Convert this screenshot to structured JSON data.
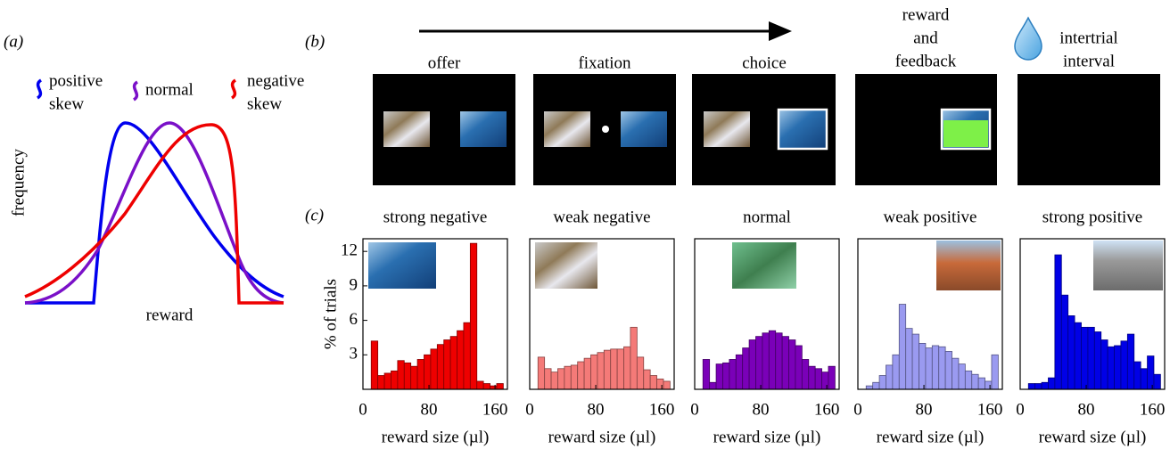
{
  "panel_a": {
    "label": "(a)",
    "curves": [
      {
        "name_lines": [
          "positive",
          "skew"
        ],
        "color": "#0000ee"
      },
      {
        "name_lines": [
          "normal"
        ],
        "color": "#7a10c8"
      },
      {
        "name_lines": [
          "negative",
          "skew"
        ],
        "color": "#ee0000"
      }
    ],
    "ylabel": "frequency",
    "xlabel": "reward"
  },
  "panel_b": {
    "label": "(b)",
    "stages": [
      {
        "label_lines": [
          "offer"
        ]
      },
      {
        "label_lines": [
          "fixation"
        ]
      },
      {
        "label_lines": [
          "choice"
        ]
      },
      {
        "label_lines": [
          "reward",
          "and",
          "feedback"
        ]
      },
      {
        "label_lines": [
          "intertrial",
          "interval"
        ]
      }
    ]
  },
  "panel_c": {
    "label": "(c)"
  },
  "chart_data": [
    {
      "type": "histogram",
      "title": "strong negative",
      "color": "#ee0000",
      "bins": [
        10,
        18,
        26,
        34,
        42,
        50,
        58,
        66,
        74,
        82,
        90,
        98,
        106,
        114,
        122,
        130,
        138,
        146,
        154,
        162,
        170
      ],
      "values": [
        4.2,
        1.2,
        1.4,
        1.6,
        2.5,
        2.3,
        2.0,
        2.6,
        3.0,
        3.5,
        3.9,
        4.3,
        4.6,
        5.1,
        5.8,
        12.7,
        0.7,
        0.5,
        0.3,
        0.5
      ],
      "xlim": [
        0,
        175
      ],
      "xticks": [
        0,
        80,
        160
      ],
      "ylim": [
        0,
        13.1
      ],
      "yticks": [
        3,
        6,
        9,
        12
      ],
      "xlabel": "reward size (µl)",
      "ylabel": "% of trials"
    },
    {
      "type": "histogram",
      "title": "weak negative",
      "color": "#f47a78",
      "bins": [
        10,
        18,
        26,
        34,
        42,
        50,
        58,
        66,
        74,
        82,
        90,
        98,
        106,
        114,
        122,
        130,
        138,
        146,
        154,
        162,
        170
      ],
      "values": [
        2.8,
        1.8,
        1.5,
        1.8,
        2.0,
        2.1,
        2.4,
        2.7,
        3.0,
        3.2,
        3.4,
        3.5,
        3.5,
        3.7,
        5.4,
        2.8,
        1.7,
        1.2,
        0.9,
        0.7
      ],
      "xlim": [
        0,
        175
      ],
      "xticks": [
        0,
        80,
        160
      ],
      "ylim": [
        0,
        13.1
      ],
      "xlabel": "reward size (µl)"
    },
    {
      "type": "histogram",
      "title": "normal",
      "color": "#7a00b8",
      "bins": [
        10,
        18,
        26,
        34,
        42,
        50,
        58,
        66,
        74,
        82,
        90,
        98,
        106,
        114,
        122,
        130,
        138,
        146,
        154,
        162,
        170
      ],
      "values": [
        2.6,
        0.6,
        2.2,
        2.3,
        2.6,
        3.0,
        3.6,
        4.3,
        4.6,
        4.9,
        5.1,
        4.9,
        4.6,
        4.3,
        3.8,
        2.6,
        2.0,
        1.8,
        1.5,
        2.0
      ],
      "xlim": [
        0,
        175
      ],
      "xticks": [
        0,
        80,
        160
      ],
      "ylim": [
        0,
        13.1
      ],
      "xlabel": "reward size (µl)"
    },
    {
      "type": "histogram",
      "title": "weak positive",
      "color": "#9a9af0",
      "bins": [
        10,
        18,
        26,
        34,
        42,
        50,
        58,
        66,
        74,
        82,
        90,
        98,
        106,
        114,
        122,
        130,
        138,
        146,
        154,
        162,
        170
      ],
      "values": [
        0.3,
        0.6,
        1.2,
        2.1,
        3.0,
        7.4,
        5.3,
        4.8,
        4.0,
        3.6,
        3.8,
        3.7,
        3.3,
        2.7,
        2.2,
        1.6,
        1.3,
        1.0,
        0.7,
        3.0
      ],
      "xlim": [
        0,
        175
      ],
      "xticks": [
        0,
        80,
        160
      ],
      "ylim": [
        0,
        13.1
      ],
      "xlabel": "reward size (µl)"
    },
    {
      "type": "histogram",
      "title": "strong positive",
      "color": "#0000e6",
      "bins": [
        10,
        18,
        26,
        34,
        42,
        50,
        58,
        66,
        74,
        82,
        90,
        98,
        106,
        114,
        122,
        130,
        138,
        146,
        154,
        162,
        170
      ],
      "values": [
        0.5,
        0.5,
        0.6,
        1.0,
        11.7,
        8.2,
        6.4,
        5.8,
        5.4,
        5.4,
        5.0,
        4.3,
        3.7,
        3.8,
        4.2,
        4.8,
        2.4,
        1.8,
        2.9,
        1.3
      ],
      "xlim": [
        0,
        175
      ],
      "xticks": [
        0,
        80,
        160
      ],
      "ylim": [
        0,
        13.1
      ],
      "xlabel": "reward size (µl)"
    }
  ]
}
